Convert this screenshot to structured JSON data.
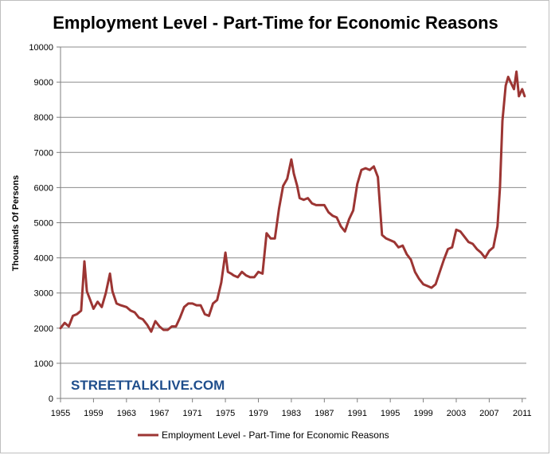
{
  "chart_data": {
    "type": "line",
    "title": "Employment Level - Part-Time for Economic Reasons",
    "ylabel": "Thousands  Of Persons",
    "xlabel": "",
    "ylim": [
      0,
      10000
    ],
    "xlim": [
      1955,
      2011.5
    ],
    "yticks": [
      0,
      1000,
      2000,
      3000,
      4000,
      5000,
      6000,
      7000,
      8000,
      9000,
      10000
    ],
    "yticklabels": [
      "0",
      "1000",
      "2000",
      "3000",
      "4000",
      "5000",
      "6000",
      "7000",
      "8000",
      "9000",
      "10000"
    ],
    "xticks": [
      1955,
      1959,
      1963,
      1967,
      1971,
      1975,
      1979,
      1983,
      1987,
      1991,
      1995,
      1999,
      2003,
      2007,
      2011
    ],
    "xticklabels": [
      "1955",
      "1959",
      "1963",
      "1967",
      "1971",
      "1975",
      "1979",
      "1983",
      "1987",
      "1991",
      "1995",
      "1999",
      "2003",
      "2007",
      "2011"
    ],
    "grid": "horizontal",
    "legend_position": "bottom",
    "watermark": "STREETTALKLIVE.COM",
    "series": [
      {
        "name": "Employment Level - Part-Time for Economic Reasons",
        "color": "#9c3533",
        "x": [
          1955,
          1955.5,
          1956,
          1956.5,
          1957,
          1957.5,
          1957.9,
          1958.2,
          1958.6,
          1959,
          1959.5,
          1960,
          1960.5,
          1961,
          1961.3,
          1961.8,
          1962.3,
          1963,
          1963.5,
          1964,
          1964.5,
          1965,
          1965.5,
          1966,
          1966.5,
          1967,
          1967.5,
          1968,
          1968.5,
          1969,
          1969.5,
          1970,
          1970.5,
          1971,
          1971.5,
          1972,
          1972.5,
          1973,
          1973.5,
          1974,
          1974.5,
          1975,
          1975.3,
          1975.7,
          1976,
          1976.5,
          1977,
          1977.5,
          1978,
          1978.5,
          1979,
          1979.5,
          1980,
          1980.5,
          1981,
          1981.5,
          1982,
          1982.5,
          1983,
          1983.3,
          1983.7,
          1984,
          1984.5,
          1985,
          1985.5,
          1986,
          1986.5,
          1987,
          1987.5,
          1988,
          1988.5,
          1989,
          1989.5,
          1990,
          1990.5,
          1991,
          1991.5,
          1992,
          1992.5,
          1993,
          1993.5,
          1994,
          1994.5,
          1995,
          1995.5,
          1996,
          1996.5,
          1997,
          1997.5,
          1998,
          1998.5,
          1999,
          1999.5,
          2000,
          2000.5,
          2001,
          2001.5,
          2002,
          2002.5,
          2003,
          2003.5,
          2004,
          2004.5,
          2005,
          2005.5,
          2006,
          2006.5,
          2007,
          2007.5,
          2008,
          2008.3,
          2008.6,
          2009,
          2009.3,
          2009.6,
          2010,
          2010.3,
          2010.6,
          2011,
          2011.3
        ],
        "y": [
          2000,
          2150,
          2050,
          2350,
          2400,
          2500,
          3900,
          3050,
          2800,
          2550,
          2750,
          2600,
          3000,
          3550,
          3050,
          2700,
          2650,
          2600,
          2500,
          2450,
          2300,
          2250,
          2100,
          1900,
          2200,
          2050,
          1950,
          1950,
          2050,
          2050,
          2300,
          2600,
          2700,
          2700,
          2650,
          2650,
          2400,
          2350,
          2700,
          2800,
          3300,
          4150,
          3600,
          3550,
          3500,
          3450,
          3600,
          3500,
          3450,
          3450,
          3600,
          3550,
          4700,
          4550,
          4550,
          5400,
          6050,
          6250,
          6800,
          6400,
          6050,
          5700,
          5650,
          5700,
          5550,
          5500,
          5500,
          5500,
          5300,
          5200,
          5150,
          4900,
          4750,
          5100,
          5350,
          6100,
          6500,
          6550,
          6500,
          6600,
          6300,
          4650,
          4550,
          4500,
          4450,
          4300,
          4350,
          4100,
          3950,
          3600,
          3400,
          3250,
          3200,
          3150,
          3250,
          3600,
          3950,
          4250,
          4300,
          4800,
          4750,
          4600,
          4450,
          4400,
          4250,
          4150,
          4000,
          4200,
          4300,
          4900,
          6000,
          7900,
          8900,
          9150,
          9000,
          8800,
          9300,
          8600,
          8800,
          8600
        ]
      }
    ]
  }
}
